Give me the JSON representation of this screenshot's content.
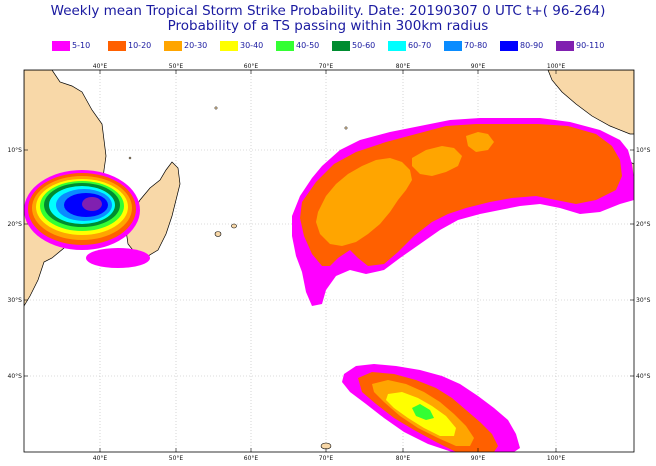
{
  "title": {
    "line1": "Weekly mean Tropical Storm Strike Probability. Date: 20190307  0 UTC   t+( 96-264)",
    "line2": "Probability of a TS passing within  300km radius"
  },
  "legend": [
    {
      "label": "5-10",
      "color": "#ff00ff"
    },
    {
      "label": "10-20",
      "color": "#ff6000"
    },
    {
      "label": "20-30",
      "color": "#ffa500"
    },
    {
      "label": "30-40",
      "color": "#ffff00"
    },
    {
      "label": "40-50",
      "color": "#33ff33"
    },
    {
      "label": "50-60",
      "color": "#008c30"
    },
    {
      "label": "60-70",
      "color": "#00ffff"
    },
    {
      "label": "70-80",
      "color": "#0a8cff"
    },
    {
      "label": "80-90",
      "color": "#0000ff"
    },
    {
      "label": "90-110",
      "color": "#8020b0"
    }
  ],
  "axes": {
    "lon_labels": [
      "40°E",
      "50°E",
      "60°E",
      "70°E",
      "80°E",
      "90°E",
      "100°E"
    ],
    "lat_labels": [
      "10°S",
      "20°S",
      "30°S",
      "40°S"
    ]
  },
  "colors": {
    "land": "#f8d8a8",
    "coast": "#000000",
    "grid": "#b8b8b8",
    "frame": "#000000"
  }
}
